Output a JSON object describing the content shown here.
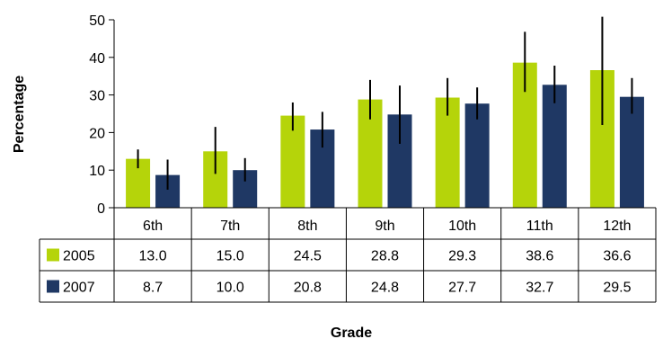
{
  "chart_data": {
    "type": "bar",
    "title": "",
    "xlabel": "Grade",
    "ylabel": "Percentage",
    "ylim": [
      0,
      50
    ],
    "yticks": [
      0,
      10,
      20,
      30,
      40,
      50
    ],
    "categories": [
      "6th",
      "7th",
      "8th",
      "9th",
      "10th",
      "11th",
      "12th"
    ],
    "series": [
      {
        "name": "2005",
        "color": "#b5d40a",
        "values": [
          13.0,
          15.0,
          24.5,
          28.8,
          29.3,
          38.6,
          36.6
        ],
        "value_labels": [
          "13.0",
          "15.0",
          "24.5",
          "28.8",
          "29.3",
          "38.6",
          "36.6"
        ],
        "error_low": [
          10.5,
          9.0,
          20.5,
          23.5,
          24.5,
          30.8,
          22.0
        ],
        "error_high": [
          15.5,
          21.5,
          28.0,
          34.0,
          34.5,
          46.8,
          50.8
        ]
      },
      {
        "name": "2007",
        "color": "#1f3864",
        "values": [
          8.7,
          10.0,
          20.8,
          24.8,
          27.7,
          32.7,
          29.5
        ],
        "value_labels": [
          "8.7",
          "10.0",
          "20.8",
          "24.8",
          "27.7",
          "32.7",
          "29.5"
        ],
        "error_low": [
          4.8,
          7.0,
          16.0,
          17.0,
          23.5,
          27.8,
          25.0
        ],
        "error_high": [
          12.8,
          13.2,
          25.5,
          32.5,
          32.0,
          37.8,
          34.5
        ]
      }
    ],
    "grid": false,
    "legend": "data-table"
  }
}
